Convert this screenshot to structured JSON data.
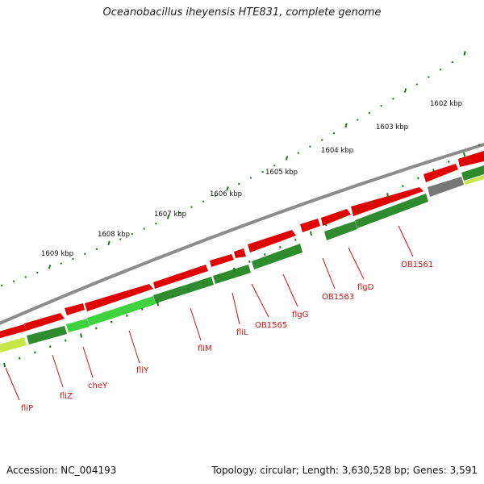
{
  "title": "Oceanobacillus iheyensis HTE831, complete genome",
  "footer": {
    "accession": "Accession: NC_004193",
    "summary": "Topology: circular; Length: 3,630,528 bp; Genes: 3,591"
  },
  "colors": {
    "forward_gene": "#e00000",
    "reverse_gene": "#2e8b2e",
    "reverse_gene_light": "#3fd23f",
    "yellow_gene": "#c8e64a",
    "gray_gene": "#777777",
    "backbone": "#8c8c8c",
    "tick": "#1a7a1a",
    "label": "#cc1111"
  },
  "kbp_labels": [
    "1602 kbp",
    "1603 kbp",
    "1604 kbp",
    "1605 kbp",
    "1606 kbp",
    "1607 kbp",
    "1608 kbp",
    "1609 kbp"
  ],
  "gene_labels": [
    "fliP",
    "fliZ",
    "cheY",
    "fliY",
    "fliM",
    "fliL",
    "OB1565",
    "flgG",
    "OB1563",
    "flgD",
    "OB1561"
  ]
}
